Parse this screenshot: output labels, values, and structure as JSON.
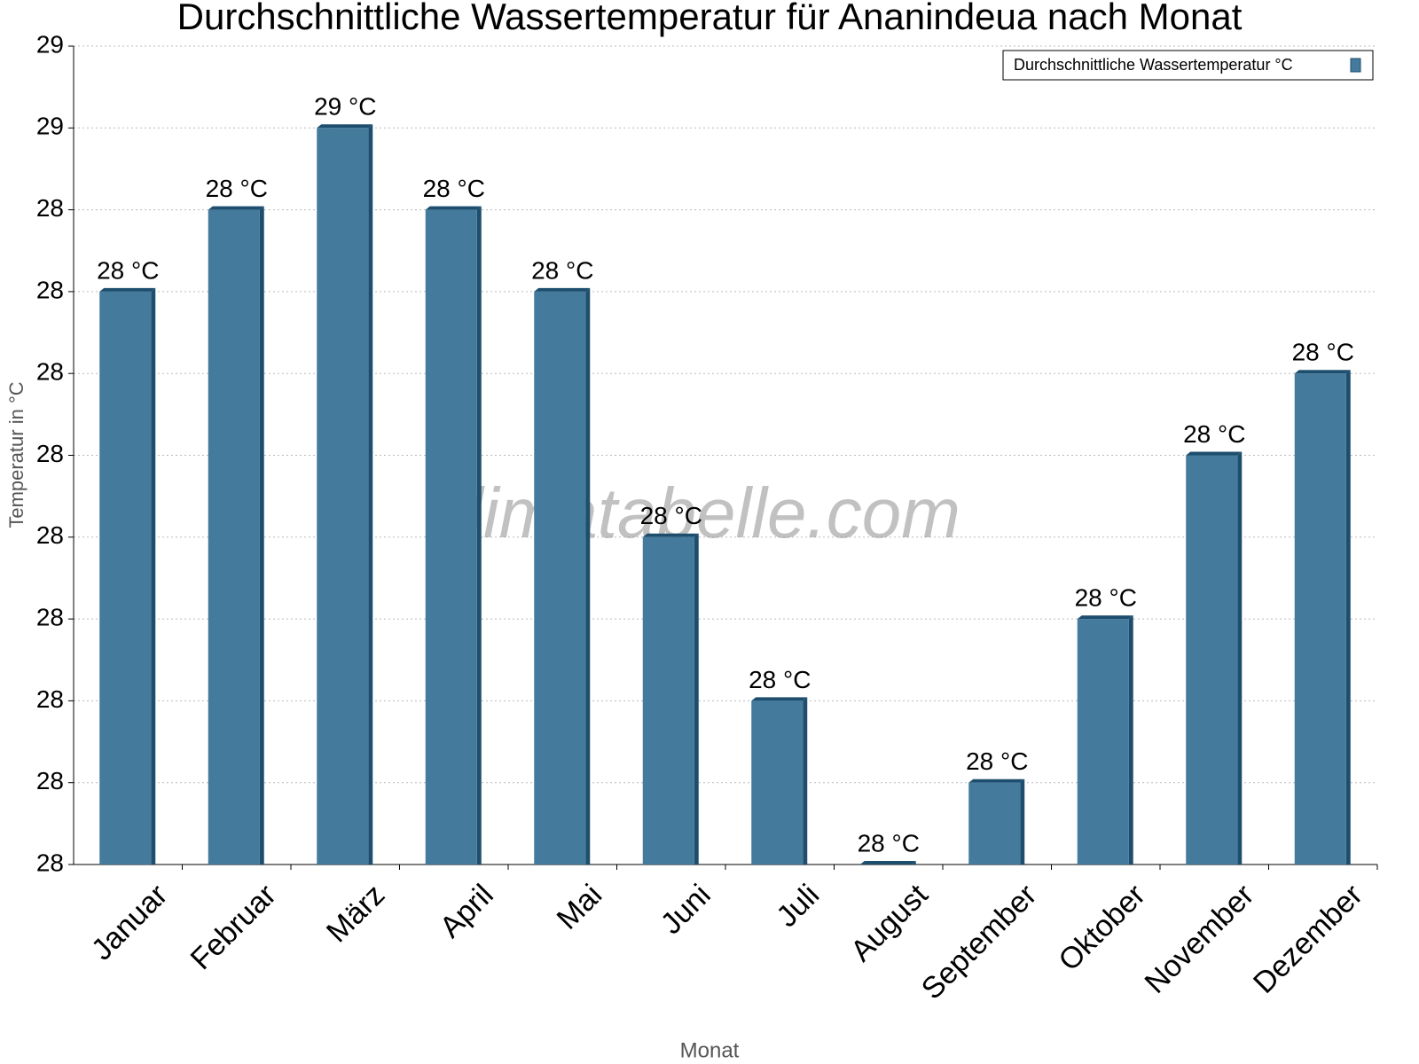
{
  "chart_data": {
    "type": "bar",
    "title": "Durchschnittliche Wassertemperatur für Ananindeua nach Monat",
    "x_label": "Monat",
    "y_label": "Temperatur in °C",
    "watermark": "klimatabelle.com",
    "categories": [
      "Januar",
      "Februar",
      "März",
      "April",
      "Mai",
      "Juni",
      "Juli",
      "August",
      "September",
      "Oktober",
      "November",
      "Dezember"
    ],
    "series": [
      {
        "name": "Durchschnittliche Wassertemperatur °C",
        "color": "#447a9c",
        "values": [
          28.3,
          28.4,
          28.5,
          28.4,
          28.3,
          28.0,
          27.8,
          27.6,
          27.7,
          27.9,
          28.1,
          28.2
        ],
        "value_labels": [
          "28 °C",
          "28 °C",
          "29 °C",
          "28 °C",
          "28 °C",
          "28 °C",
          "28 °C",
          "28 °C",
          "28 °C",
          "28 °C",
          "28 °C",
          "28 °C"
        ]
      }
    ],
    "ylim": [
      27.6,
      28.6
    ],
    "yticks": [
      {
        "value": 27.6,
        "label": "28"
      },
      {
        "value": 27.7,
        "label": "28"
      },
      {
        "value": 27.8,
        "label": "28"
      },
      {
        "value": 27.9,
        "label": "28"
      },
      {
        "value": 28.0,
        "label": "28"
      },
      {
        "value": 28.1,
        "label": "28"
      },
      {
        "value": 28.2,
        "label": "28"
      },
      {
        "value": 28.3,
        "label": "28"
      },
      {
        "value": 28.4,
        "label": "28"
      },
      {
        "value": 28.5,
        "label": "29"
      },
      {
        "value": 28.6,
        "label": "29"
      }
    ],
    "grid": true,
    "legend": "top-right"
  }
}
